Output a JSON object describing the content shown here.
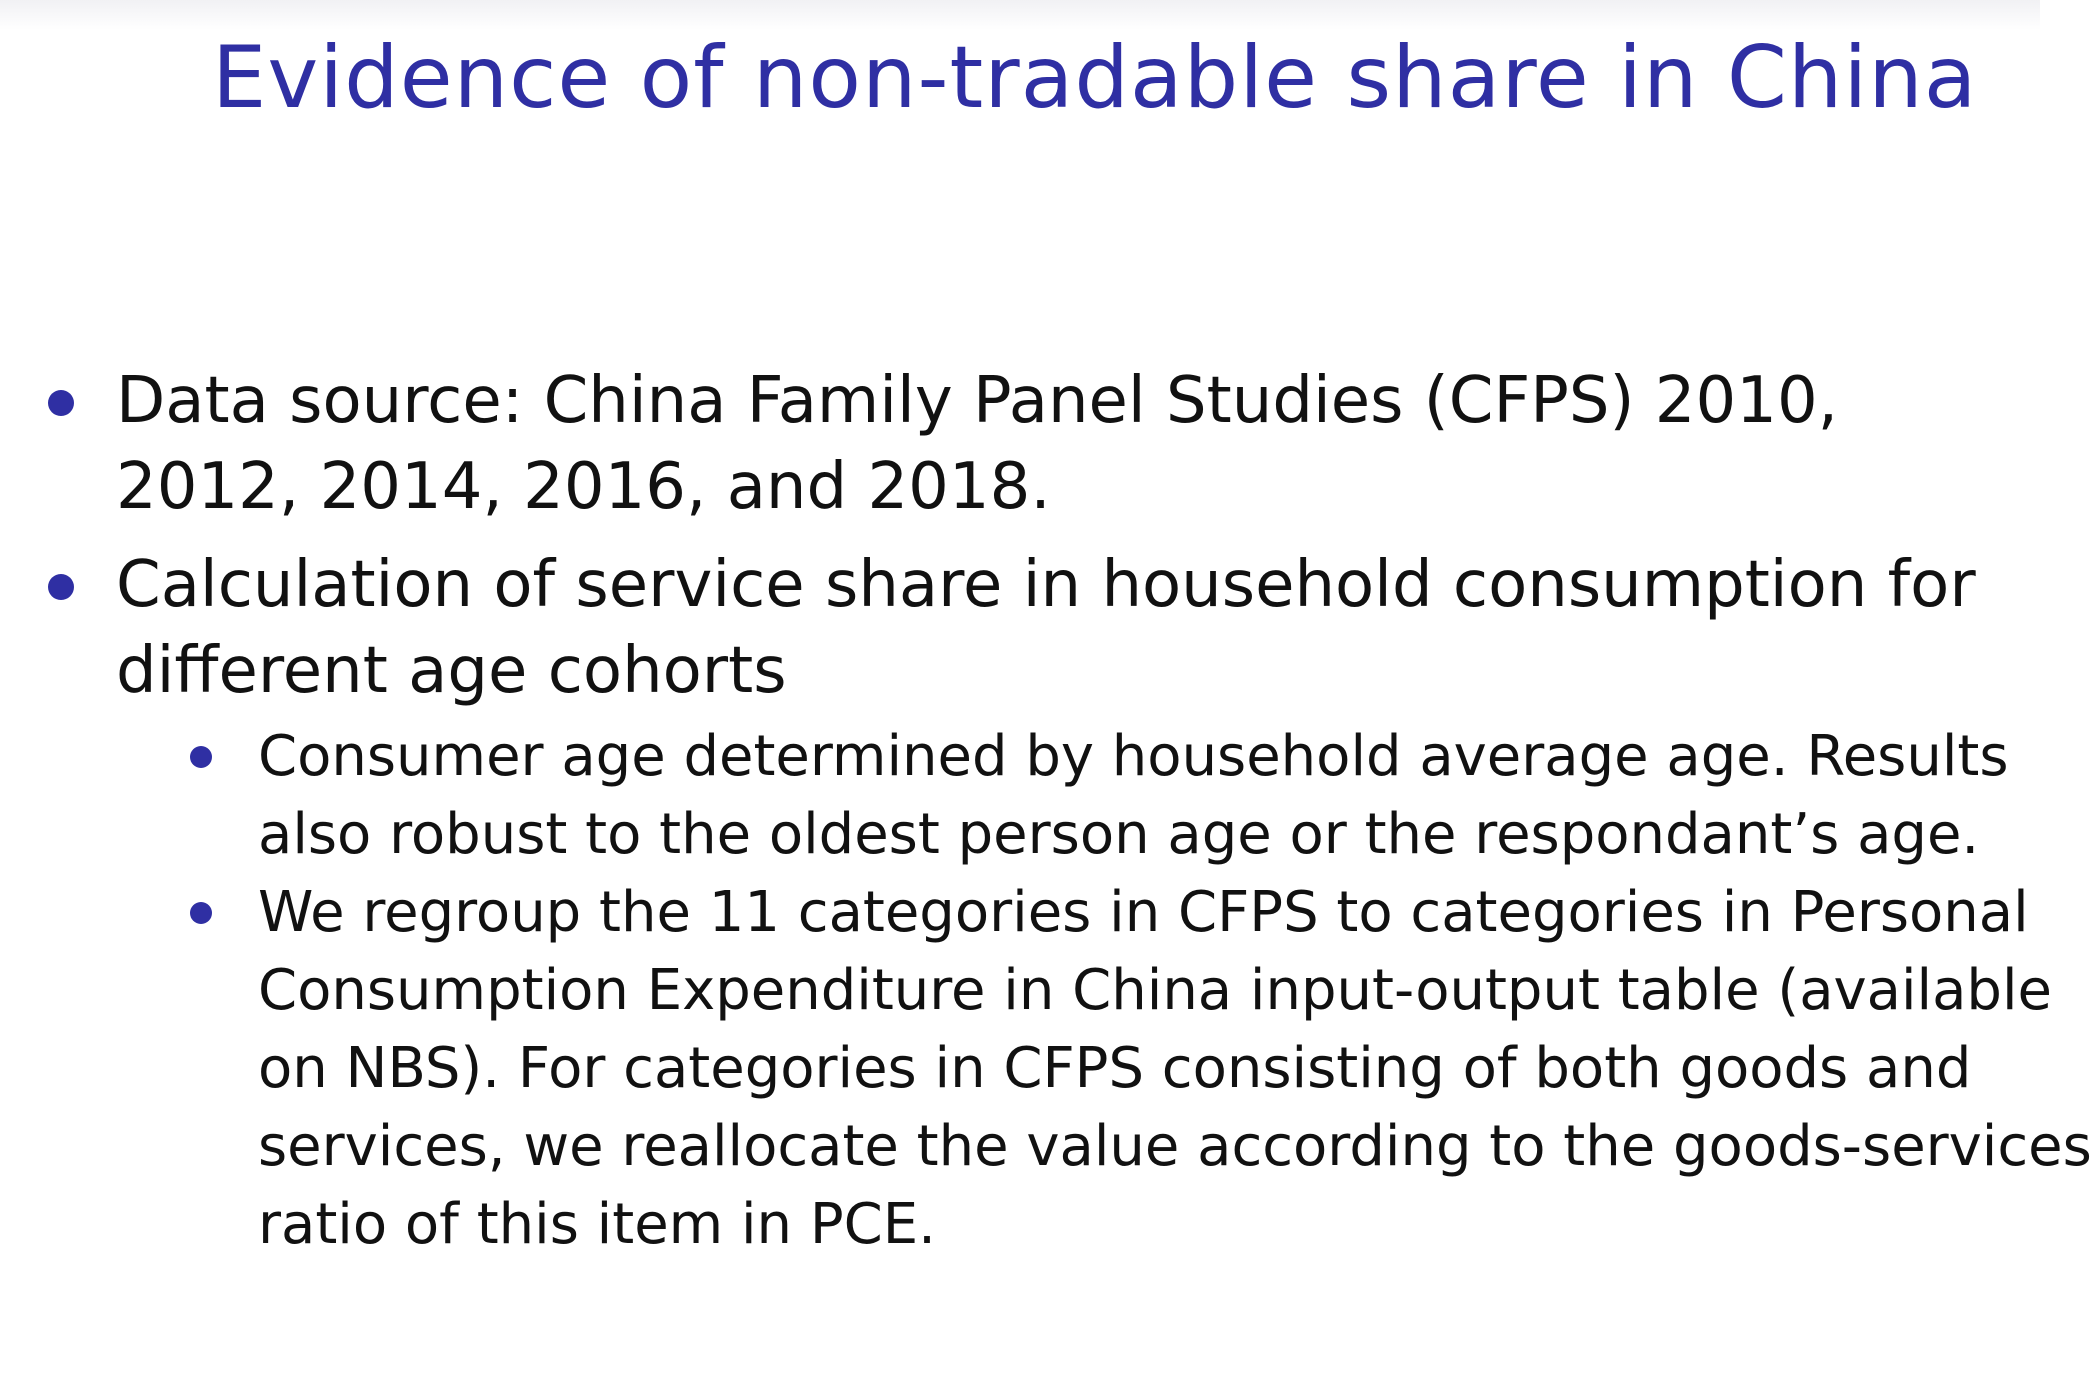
{
  "slide": {
    "title": "Evidence of non-tradable share in China",
    "accent_color": "#2f2fa3",
    "bullets": [
      {
        "text": "Data source: China Family Panel Studies (CFPS) 2010, 2012, 2014, 2016, and 2018."
      },
      {
        "text": "Calculation of service share in household consumption for different age cohorts",
        "sub_bullets": [
          {
            "text": "Consumer age determined by household average age. Results also robust to the oldest person age or the respondant’s age."
          },
          {
            "text": "We regroup the 11 categories in CFPS to categories in Personal Consumption Expenditure in China input-output table (available on NBS). For categories in CFPS consisting of both goods and services, we reallocate the value according to the goods-services ratio of this item in PCE."
          }
        ]
      }
    ]
  }
}
